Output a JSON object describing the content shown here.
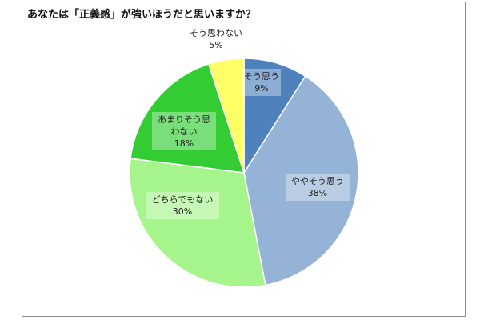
{
  "chart_data": {
    "type": "pie",
    "title": "あなたは「正義感」が強いほうだと思いますか？",
    "slices": [
      {
        "label": "そう思う",
        "value": 9,
        "value_label": "9%",
        "color": "#4f81bd"
      },
      {
        "label": "ややそう思う",
        "value": 38,
        "value_label": "38%",
        "color": "#95b3d7"
      },
      {
        "label": "どちらでもない",
        "value": 30,
        "value_label": "30%",
        "color": "#a6f58c"
      },
      {
        "label": "あまりそう思わない",
        "value": 18,
        "value_label": "18%",
        "color": "#33cc33"
      },
      {
        "label": "そう思わない",
        "value": 5,
        "value_label": "5%",
        "color": "#ffff66"
      }
    ],
    "start_angle_deg": 0,
    "direction": "clockwise",
    "legend": "none"
  }
}
